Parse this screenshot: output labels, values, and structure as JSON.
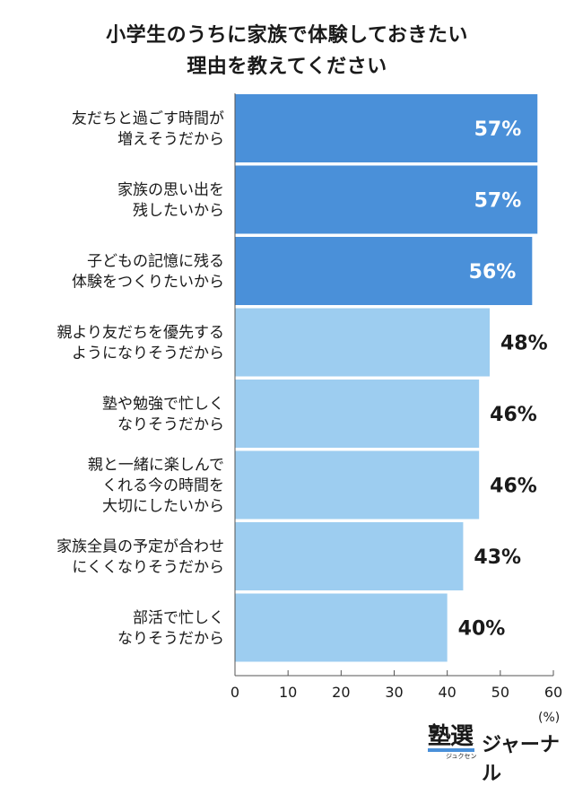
{
  "title_lines": [
    "小学生のうちに家族で体験しておきたい",
    "理由を教えてください"
  ],
  "chart_data": {
    "type": "bar",
    "orientation": "horizontal",
    "categories": [
      [
        "友だちと過ごす時間が",
        "増えそうだから"
      ],
      [
        "家族の思い出を",
        "残したいから"
      ],
      [
        "子どもの記憶に残る",
        "体験をつくりたいから"
      ],
      [
        "親より友だちを優先する",
        "ようになりそうだから"
      ],
      [
        "塾や勉強で忙しく",
        "なりそうだから"
      ],
      [
        "親と一緒に楽しんで",
        "くれる今の時間を",
        "大切にしたいから"
      ],
      [
        "家族全員の予定が合わせ",
        "にくくなりそうだから"
      ],
      [
        "部活で忙しく",
        "なりそうだから"
      ]
    ],
    "values": [
      57,
      57,
      56,
      48,
      46,
      46,
      43,
      40
    ],
    "value_labels": [
      "57%",
      "57%",
      "56%",
      "48%",
      "46%",
      "46%",
      "43%",
      "40%"
    ],
    "xlim": [
      0,
      60
    ],
    "xticks": [
      0,
      10,
      20,
      30,
      40,
      50,
      60
    ],
    "unit": "(%)",
    "colors": {
      "top": "#4a90d9",
      "rest": "#9dcdf0",
      "top_label": "#ffffff",
      "rest_label": "#1a1a1a",
      "axis": "#555555"
    },
    "highlight_count": 3
  },
  "logo": {
    "text1": "塾選",
    "text1_sub": "ジュクセン",
    "text2": "ジャーナル"
  }
}
